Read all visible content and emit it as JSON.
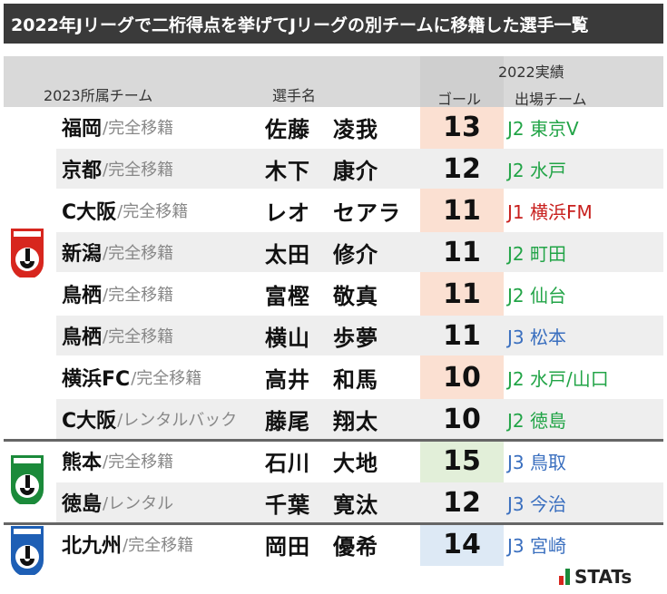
{
  "title": "2022年Jリーグで二桁得点を挙げてJリーグの別チームに移籍した選手一覧",
  "header": {
    "team_col": "2023所属チーム",
    "player_col": "選手名",
    "record_group": "2022実績",
    "goals_col": "ゴール",
    "club_col": "出場チーム"
  },
  "groups": [
    {
      "league": "J1",
      "logo": "j1-league-emblem",
      "logo_color": "#d7261e"
    },
    {
      "league": "J2",
      "logo": "j2-league-emblem",
      "logo_color": "#1b8a3a"
    },
    {
      "league": "J3",
      "logo": "j3-league-emblem",
      "logo_color": "#1e5fb5"
    }
  ],
  "rows": [
    {
      "team": "福岡",
      "transfer": "/完全移籍",
      "player": "佐藤　凌我",
      "goals": "13",
      "club": "J2 東京V",
      "club_league": "J2"
    },
    {
      "team": "京都",
      "transfer": "/完全移籍",
      "player": "木下　康介",
      "goals": "12",
      "club": "J2 水戸",
      "club_league": "J2"
    },
    {
      "team": "C大阪",
      "transfer": "/完全移籍",
      "player": "レオ　セアラ",
      "goals": "11",
      "club": "J1 横浜FM",
      "club_league": "J1"
    },
    {
      "team": "新潟",
      "transfer": "/完全移籍",
      "player": "太田　修介",
      "goals": "11",
      "club": "J2 町田",
      "club_league": "J2"
    },
    {
      "team": "鳥栖",
      "transfer": "/完全移籍",
      "player": "富樫　敬真",
      "goals": "11",
      "club": "J2 仙台",
      "club_league": "J2"
    },
    {
      "team": "鳥栖",
      "transfer": "/完全移籍",
      "player": "横山　歩夢",
      "goals": "11",
      "club": "J3 松本",
      "club_league": "J3"
    },
    {
      "team": "横浜FC",
      "transfer": "/完全移籍",
      "player": "高井　和馬",
      "goals": "10",
      "club": "J2 水戸/山口",
      "club_league": "J2"
    },
    {
      "team": "C大阪",
      "transfer": "/レンタルバック",
      "player": "藤尾　翔太",
      "goals": "10",
      "club": "J2 徳島",
      "club_league": "J2"
    },
    {
      "team": "熊本",
      "transfer": "/完全移籍",
      "player": "石川　大地",
      "goals": "15",
      "club": "J3 鳥取",
      "club_league": "J3"
    },
    {
      "team": "徳島",
      "transfer": "/レンタル",
      "player": "千葉　寛汰",
      "goals": "12",
      "club": "J3 今治",
      "club_league": "J3"
    },
    {
      "team": "北九州",
      "transfer": "/完全移籍",
      "player": "岡田　優希",
      "goals": "14",
      "club": "J3 宮崎",
      "club_league": "J3"
    }
  ],
  "colors": {
    "goals_bg_j1": "#fbe0d2",
    "goals_bg_j2": "#e2efd9",
    "goals_bg_j3": "#dde9f5",
    "stats_red": "#d7261e",
    "stats_green": "#1b8a3a"
  },
  "branding": {
    "stats_logo": "STATs"
  }
}
